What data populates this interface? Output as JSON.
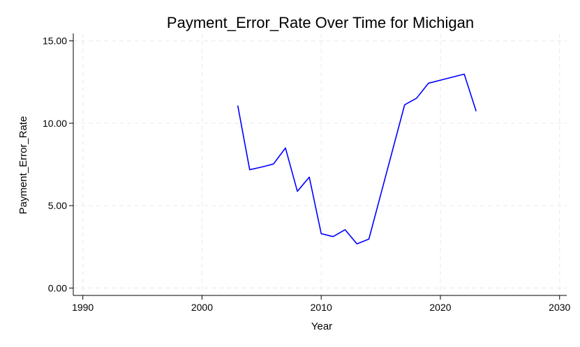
{
  "chart_data": {
    "type": "line",
    "title": "Payment_Error_Rate Over Time for Michigan",
    "xlabel": "Year",
    "ylabel": "Payment_Error_Rate",
    "xlim": [
      1989.2,
      2030.6
    ],
    "ylim": [
      -0.45,
      15.45
    ],
    "x_ticks": [
      1990,
      2000,
      2010,
      2020,
      2030
    ],
    "y_ticks": [
      0,
      5,
      10,
      15
    ],
    "y_tick_labels": [
      "0.00",
      "5.00",
      "10.00",
      "15.00"
    ],
    "grid": true,
    "series": [
      {
        "color": "#0000ff",
        "x": [
          2003,
          2004,
          2005,
          2006,
          2007,
          2008,
          2009,
          2010,
          2011,
          2012,
          2013,
          2014,
          2017,
          2018,
          2019,
          2022,
          2023
        ],
        "y": [
          11.07,
          7.18,
          7.34,
          7.53,
          8.5,
          5.87,
          6.73,
          3.3,
          3.12,
          3.54,
          2.68,
          2.97,
          11.12,
          11.52,
          12.43,
          12.98,
          10.73
        ]
      }
    ]
  }
}
